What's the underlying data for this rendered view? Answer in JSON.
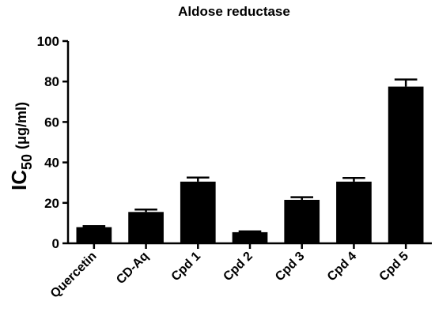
{
  "chart_data": {
    "type": "bar",
    "title": "Aldose reductase",
    "xlabel": "",
    "ylabel": {
      "main": "IC",
      "subscript": "50",
      "unit": "(μg/ml)"
    },
    "ylim": [
      0,
      100
    ],
    "yticks": [
      0,
      20,
      40,
      60,
      80,
      100
    ],
    "grid": false,
    "categories": [
      "Quercetin",
      "CD-Aq",
      "Cpd 1",
      "Cpd 2",
      "Cpd 3",
      "Cpd 4",
      "Cpd 5"
    ],
    "values": [
      8,
      15.5,
      30.5,
      5.5,
      21.5,
      30.5,
      77.5
    ],
    "errors": [
      0.5,
      1.2,
      2.0,
      0.4,
      1.3,
      1.8,
      3.5
    ],
    "colors": {
      "bar": "#000000",
      "axis": "#000000",
      "text": "#000000"
    }
  }
}
